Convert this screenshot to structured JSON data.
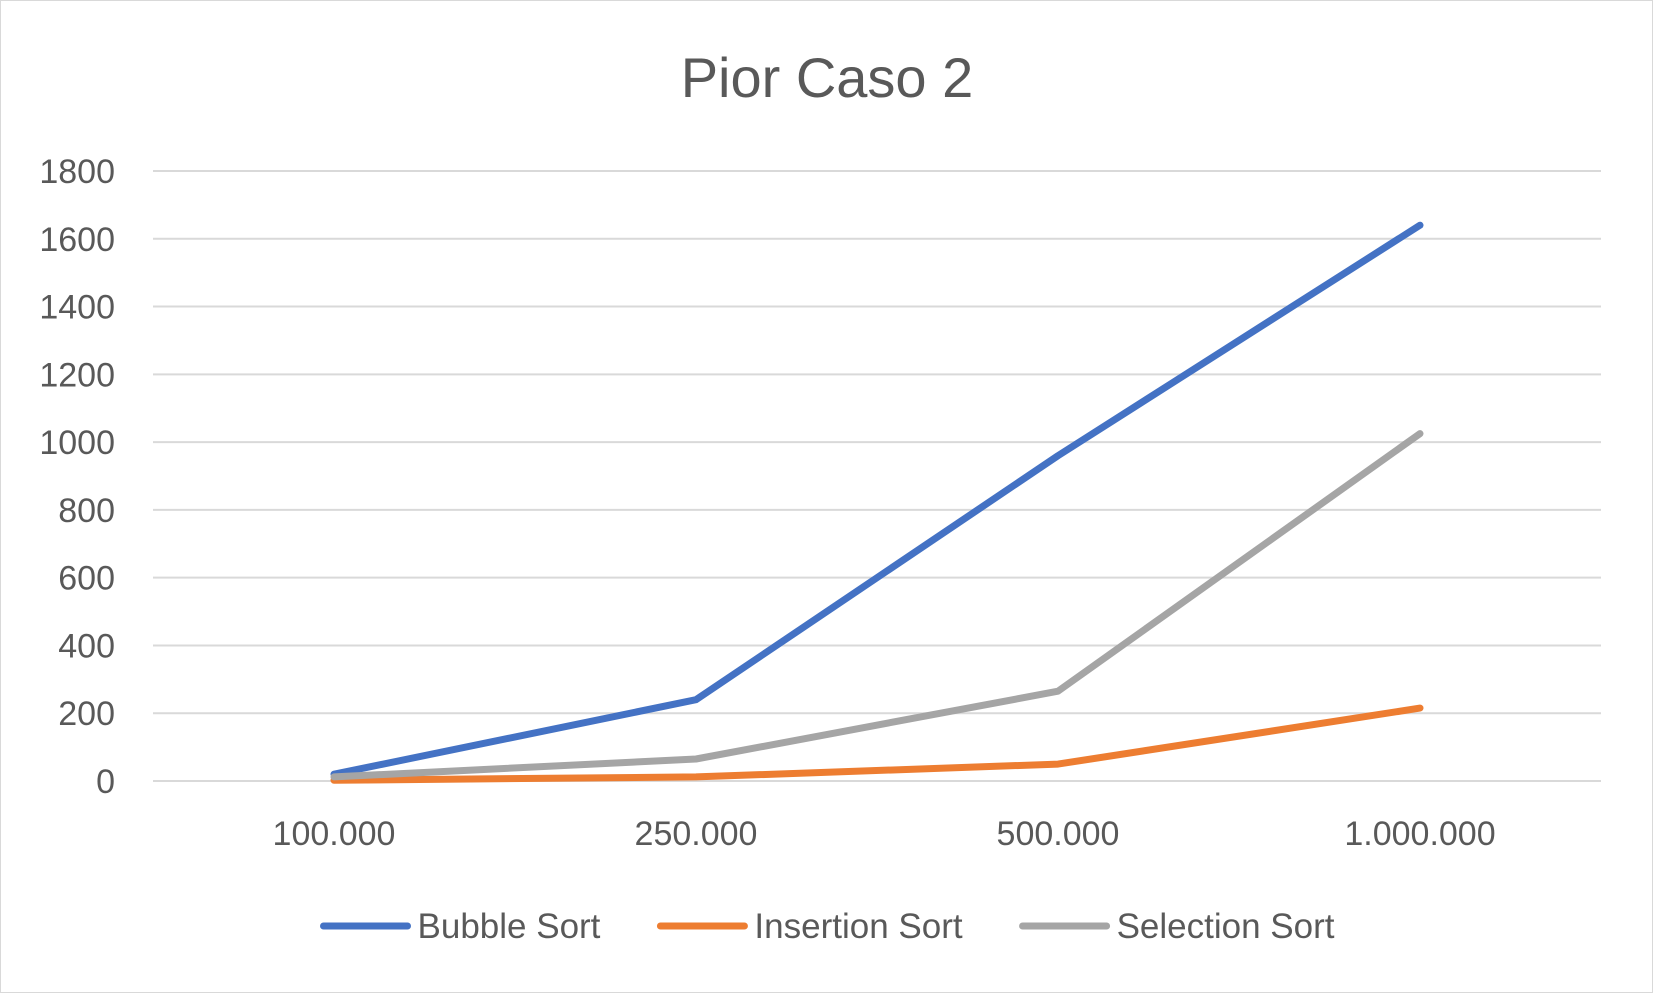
{
  "chart_data": {
    "type": "line",
    "title": "Pior Caso 2",
    "xlabel": "",
    "ylabel": "",
    "categories": [
      "100.000",
      "250.000",
      "500.000",
      "1.000.000"
    ],
    "ylim": [
      0,
      1800
    ],
    "yticks": [
      0,
      200,
      400,
      600,
      800,
      1000,
      1200,
      1400,
      1600,
      1800
    ],
    "grid": true,
    "legend_position": "bottom",
    "series": [
      {
        "name": "Bubble Sort",
        "color": "#4472C4",
        "values": [
          20,
          240,
          960,
          1640
        ]
      },
      {
        "name": "Insertion Sort",
        "color": "#ED7D31",
        "values": [
          2,
          12,
          50,
          215
        ]
      },
      {
        "name": "Selection Sort",
        "color": "#A5A5A5",
        "values": [
          12,
          65,
          265,
          1025
        ]
      }
    ]
  }
}
